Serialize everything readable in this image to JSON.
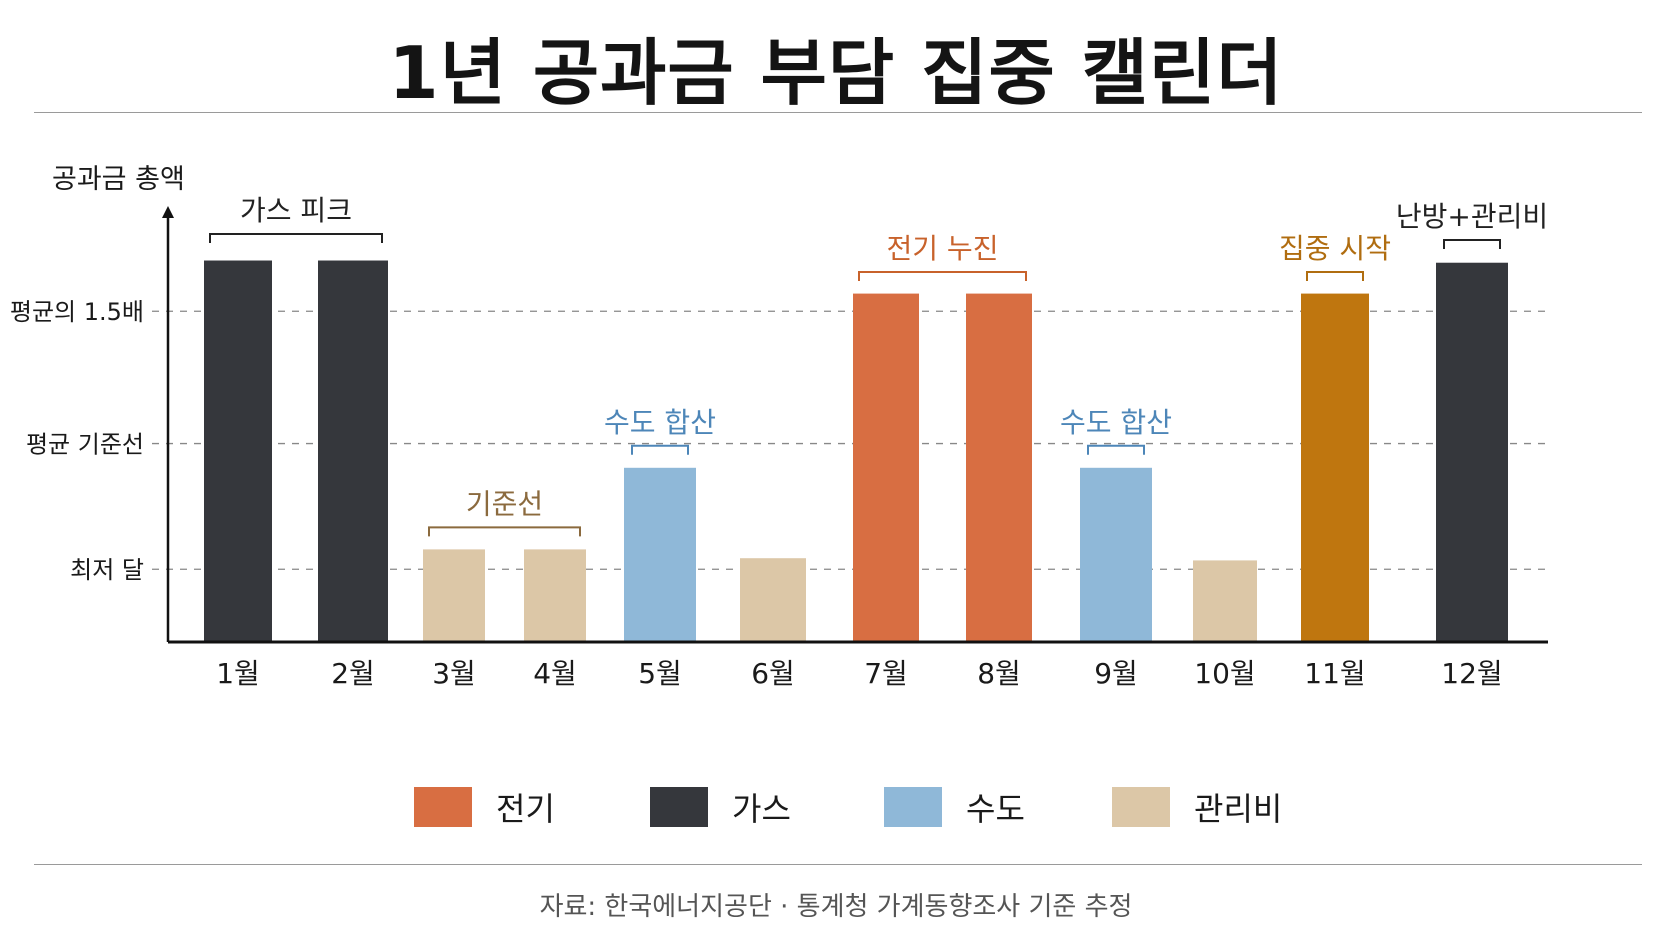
{
  "title": "1년 공과금 부담 집중 캘린더",
  "source": "자료: 한국에너지공단 · 통계청 가계동향조사 기준 추정",
  "colors": {
    "전기": "#d86e42",
    "가스": "#35373c",
    "수도": "#8fb8d8",
    "관리비": "#dcc7a7",
    "집중": "#bf760f",
    "annotation_blue": "#4d86b8",
    "annotation_brown": "#8b6a3e",
    "annotation_orange": "#c8622b",
    "annotation_amber": "#b06d10"
  },
  "chart_data": {
    "type": "bar",
    "ylabel": "공과금 총액",
    "categories": [
      "1월",
      "2월",
      "3월",
      "4월",
      "5월",
      "6월",
      "7월",
      "8월",
      "9월",
      "10월",
      "11월",
      "12월"
    ],
    "values": [
      1.73,
      1.73,
      0.42,
      0.42,
      0.79,
      0.38,
      1.58,
      1.58,
      0.79,
      0.37,
      1.58,
      1.72
    ],
    "bar_types": [
      "가스",
      "가스",
      "관리비",
      "관리비",
      "수도",
      "관리비",
      "전기",
      "전기",
      "수도",
      "관리비",
      "집중",
      "가스"
    ],
    "ylim": [
      0,
      1.95
    ],
    "reference_lines": [
      {
        "label": "평균의 1.5배",
        "value": 1.5
      },
      {
        "label": "평균 기준선",
        "value": 0.9
      },
      {
        "label": "최저 달",
        "value": 0.33
      }
    ],
    "annotations": [
      {
        "text": "가스 피크",
        "months": [
          0,
          1
        ],
        "color": "#222222"
      },
      {
        "text": "기준선",
        "months": [
          2,
          3
        ],
        "color": "#8b6a3e"
      },
      {
        "text": "수도 합산",
        "months": [
          4,
          4
        ],
        "color": "#4d86b8"
      },
      {
        "text": "전기 누진",
        "months": [
          6,
          7
        ],
        "color": "#c8622b"
      },
      {
        "text": "수도 합산",
        "months": [
          8,
          8
        ],
        "color": "#4d86b8"
      },
      {
        "text": "집중 시작",
        "months": [
          10,
          10
        ],
        "color": "#b06d10"
      },
      {
        "text": "난방+관리비",
        "months": [
          11,
          11
        ],
        "color": "#222222"
      }
    ],
    "legend": [
      {
        "name": "전기",
        "color": "#d86e42"
      },
      {
        "name": "가스",
        "color": "#35373c"
      },
      {
        "name": "수도",
        "color": "#8fb8d8"
      },
      {
        "name": "관리비",
        "color": "#dcc7a7"
      }
    ],
    "grid": false,
    "legend_position": "bottom"
  }
}
